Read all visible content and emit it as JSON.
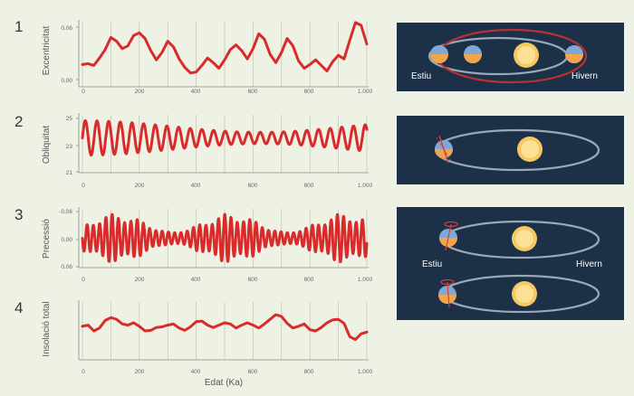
{
  "panels": [
    {
      "number": "1",
      "ylabel": "Excentricitat",
      "yticks": [
        "0,06",
        "0,00"
      ]
    },
    {
      "number": "2",
      "ylabel": "Obliquitat",
      "yticks": [
        "25",
        "23",
        "21"
      ]
    },
    {
      "number": "3",
      "ylabel": "Precessió",
      "yticks": [
        "-0,06",
        "0,00",
        "0,06"
      ]
    },
    {
      "number": "4",
      "ylabel": "Insolació total",
      "yticks": []
    }
  ],
  "xticks": [
    "0",
    "200",
    "400",
    "600",
    "800",
    "1.000"
  ],
  "xlabel": "Edat (Ka)",
  "colors": {
    "line": "#d92b2b",
    "background": "#eef2e4",
    "diagram_bg": "#1c3047",
    "orbit": "#9aa9b8",
    "sun": "#f6c860",
    "earth": "#7fa8d8"
  },
  "diagrams": [
    {
      "labels": {
        "left": "Estiu",
        "right": "Hivern"
      }
    },
    {
      "labels": {}
    },
    {
      "labels": {
        "left": "Estiu",
        "right": "Hivern"
      }
    }
  ],
  "chart_data": [
    {
      "type": "line",
      "title": "",
      "xlabel": "",
      "ylabel": "Excentricitat",
      "xlim": [
        0,
        1000
      ],
      "ylim": [
        0,
        0.06
      ],
      "series": [
        {
          "x": [
            0,
            20,
            40,
            60,
            80,
            100,
            120,
            140,
            160,
            180,
            200,
            220,
            240,
            260,
            280,
            300,
            320,
            340,
            360,
            380,
            400,
            420,
            440,
            460,
            480,
            500,
            520,
            540,
            560,
            580,
            600,
            620,
            640,
            660,
            680,
            700,
            720,
            740,
            760,
            780,
            800,
            820,
            840,
            860,
            880,
            900,
            920,
            940,
            960,
            980,
            1000
          ],
          "values": [
            0.018,
            0.019,
            0.017,
            0.025,
            0.034,
            0.047,
            0.043,
            0.035,
            0.038,
            0.049,
            0.052,
            0.046,
            0.033,
            0.023,
            0.031,
            0.043,
            0.037,
            0.024,
            0.015,
            0.009,
            0.01,
            0.017,
            0.025,
            0.02,
            0.014,
            0.023,
            0.034,
            0.039,
            0.033,
            0.024,
            0.035,
            0.051,
            0.045,
            0.029,
            0.02,
            0.031,
            0.046,
            0.038,
            0.022,
            0.014,
            0.018,
            0.023,
            0.017,
            0.011,
            0.021,
            0.028,
            0.024,
            0.044,
            0.063,
            0.06,
            0.04
          ]
        }
      ]
    },
    {
      "type": "line",
      "title": "",
      "xlabel": "",
      "ylabel": "Obliquitat",
      "xlim": [
        0,
        1000
      ],
      "ylim": [
        21,
        25
      ],
      "series": [
        {
          "mean": 23.4,
          "amplitude_max": 1.2,
          "amplitude_min": 0.4,
          "period_ka": 41
        }
      ]
    },
    {
      "type": "line",
      "title": "",
      "xlabel": "",
      "ylabel": "Precessió",
      "xlim": [
        0,
        1000
      ],
      "ylim": [
        0.06,
        -0.06
      ],
      "series": [
        {
          "mean": 0.0,
          "amplitude_max": 0.05,
          "amplitude_min": 0.008,
          "period_ka": 22
        }
      ]
    },
    {
      "type": "line",
      "title": "",
      "xlabel": "Edat (Ka)",
      "ylabel": "Insolació total",
      "xlim": [
        0,
        1000
      ],
      "ylim": [
        0,
        1
      ],
      "series": [
        {
          "x": [
            0,
            20,
            40,
            60,
            80,
            100,
            120,
            140,
            160,
            180,
            200,
            220,
            240,
            260,
            280,
            300,
            320,
            340,
            360,
            380,
            400,
            420,
            440,
            460,
            480,
            500,
            520,
            540,
            560,
            580,
            600,
            620,
            640,
            660,
            680,
            700,
            720,
            740,
            760,
            780,
            800,
            820,
            840,
            860,
            880,
            900,
            920,
            940,
            960,
            980,
            1000
          ],
          "values": [
            0.58,
            0.6,
            0.5,
            0.55,
            0.68,
            0.73,
            0.7,
            0.62,
            0.6,
            0.64,
            0.58,
            0.5,
            0.51,
            0.56,
            0.57,
            0.6,
            0.62,
            0.55,
            0.51,
            0.57,
            0.66,
            0.67,
            0.6,
            0.56,
            0.6,
            0.64,
            0.62,
            0.55,
            0.6,
            0.64,
            0.6,
            0.55,
            0.62,
            0.7,
            0.78,
            0.75,
            0.63,
            0.55,
            0.58,
            0.62,
            0.52,
            0.5,
            0.56,
            0.64,
            0.69,
            0.7,
            0.63,
            0.4,
            0.35,
            0.45,
            0.48
          ]
        }
      ]
    }
  ]
}
